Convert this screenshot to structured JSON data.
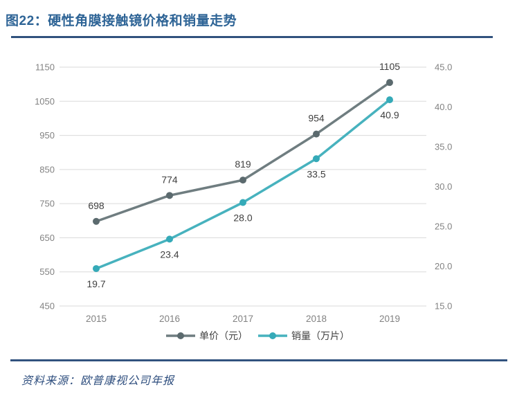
{
  "header": {
    "title": "图22：硬性角膜接触镜价格和销量走势"
  },
  "footer": {
    "source": "资料来源：欧普康视公司年报"
  },
  "colors": {
    "title_blue": "#2E6496",
    "rule_navy": "#31527E",
    "grid": "#DADADA",
    "axis_label": "#828282",
    "data_label": "#3F3F3F",
    "price_line": "#6F7D80",
    "price_marker": "#5B6A6E",
    "sales_line": "#47B2BE",
    "sales_marker": "#35AAB8"
  },
  "chart_data": {
    "type": "line",
    "title": "硬性角膜接触镜价格和销量走势",
    "categories": [
      "2015",
      "2016",
      "2017",
      "2018",
      "2019"
    ],
    "series": [
      {
        "id": "price",
        "name": "单价（元）",
        "axis": "left",
        "values": [
          698,
          774,
          819,
          954,
          1105
        ],
        "data_labels": [
          "698",
          "774",
          "819",
          "954",
          "1105"
        ],
        "label_position": "above",
        "line_color": "#6F7D80",
        "marker_color": "#5B6A6E"
      },
      {
        "id": "sales",
        "name": "销量（万片）",
        "axis": "right",
        "values": [
          19.7,
          23.4,
          28.0,
          33.5,
          40.9
        ],
        "data_labels": [
          "19.7",
          "23.4",
          "28.0",
          "33.5",
          "40.9"
        ],
        "label_position": "below",
        "line_color": "#47B2BE",
        "marker_color": "#35AAB8"
      }
    ],
    "left_axis": {
      "min": 450,
      "max": 1150,
      "tick_labels": [
        "1150",
        "1050",
        "950",
        "850",
        "750",
        "650",
        "550",
        "450"
      ]
    },
    "right_axis": {
      "min": 15.0,
      "max": 45.0,
      "tick_labels": [
        "45.0",
        "40.0",
        "35.0",
        "30.0",
        "25.0",
        "20.0",
        "15.0"
      ]
    },
    "grid": "horizontal",
    "legend_position": "bottom"
  }
}
